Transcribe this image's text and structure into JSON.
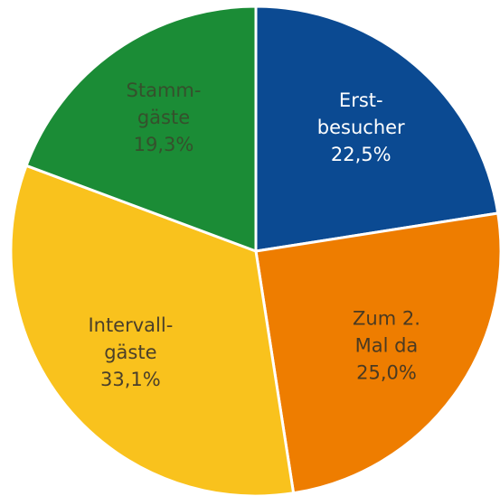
{
  "chart_data": {
    "type": "pie",
    "categories": [
      [
        "Erst-",
        "besucher"
      ],
      [
        "Zum 2.",
        "Mal da"
      ],
      [
        "Intervall-",
        "gäste"
      ],
      [
        "Stamm-",
        "gäste"
      ]
    ],
    "values": [
      22.5,
      25.0,
      33.1,
      19.3
    ],
    "value_labels": [
      "22,5%",
      "25,0%",
      "33,1%",
      "19,3%"
    ],
    "colors": [
      "#0b4a92",
      "#ee7d00",
      "#f9c21d",
      "#1b8c36"
    ],
    "label_colors": [
      "#ffffff",
      "#4a3a22",
      "#4a3f2a",
      "#35502c"
    ]
  }
}
